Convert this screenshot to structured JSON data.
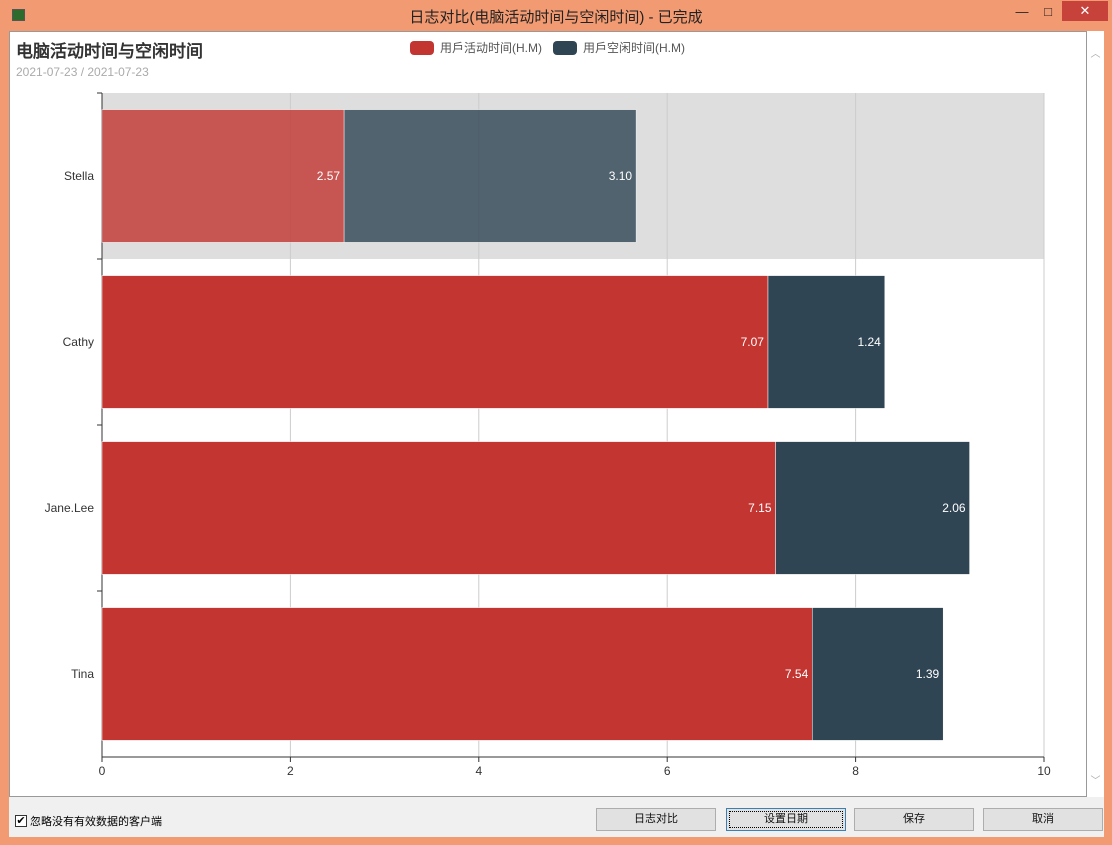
{
  "window": {
    "title": "日志对比(电脑活动时间与空闲时间) - 已完成",
    "minimize": "—",
    "maximize": "□",
    "close": "✕"
  },
  "chart_header": {
    "title": "电脑活动时间与空闲时间",
    "date_range": "2021-07-23 / 2021-07-23"
  },
  "colors": {
    "active": "#c23531",
    "idle": "#2f4554"
  },
  "chart_data": {
    "type": "bar",
    "orientation": "horizontal",
    "stacked": true,
    "categories": [
      "Stella",
      "Cathy",
      "Jane.Lee",
      "Tina"
    ],
    "series": [
      {
        "name": "用戶活动时间(H.M)",
        "values": [
          2.57,
          7.07,
          7.15,
          7.54
        ]
      },
      {
        "name": "用戶空闲时间(H.M)",
        "values": [
          3.1,
          1.24,
          2.06,
          1.39
        ]
      }
    ],
    "xlim": [
      0,
      10
    ],
    "xticks": [
      "0",
      "2",
      "4",
      "6",
      "8",
      "10"
    ],
    "labels": [
      [
        "2.57",
        "7.07",
        "7.15",
        "7.54"
      ],
      [
        "3.10",
        "1.24",
        "2.06",
        "1.39"
      ]
    ],
    "highlighted": "Stella",
    "legend": "top-center",
    "grid": true
  },
  "footer": {
    "checkbox_label": "忽略没有有效数据的客户端",
    "checked": true,
    "buttons": [
      "日志对比",
      "设置日期",
      "保存",
      "取消"
    ]
  }
}
